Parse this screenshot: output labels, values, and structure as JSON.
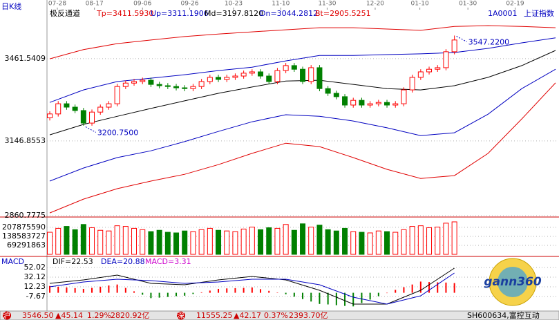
{
  "window_title": "日K线",
  "header": {
    "security_code": "1A0001",
    "security_name": "上证指数"
  },
  "chart_data": [
    {
      "type": "candlestick",
      "title": "极反通道",
      "up_color": "#ff0000",
      "down_color": "#008000",
      "xlim": [
        -0.33,
        60.16
      ],
      "xticks": [
        {
          "value": 0.9,
          "label": "07-28"
        },
        {
          "value": 5.3,
          "label": "08-17"
        },
        {
          "value": 11,
          "label": "09-06"
        },
        {
          "value": 16.6,
          "label": "09-26"
        },
        {
          "value": 21.8,
          "label": "10-23"
        },
        {
          "value": 27.4,
          "label": "11-10"
        },
        {
          "value": 32.9,
          "label": "11-30"
        },
        {
          "value": 38.6,
          "label": "12-20"
        },
        {
          "value": 43.9,
          "label": "01-10"
        },
        {
          "value": 49.6,
          "label": "01-30"
        },
        {
          "value": 55.2,
          "label": "02-19"
        }
      ],
      "ylim": [
        2860.7775,
        3649
      ],
      "yticks": [
        2860.7775,
        3146.8553,
        3461.5409
      ],
      "grid": true,
      "open": [
        3235,
        3250,
        3289,
        3276,
        3263,
        3215,
        3257,
        3276,
        3289,
        3355,
        3368,
        3374,
        3379,
        3363,
        3358,
        3355,
        3350,
        3347,
        3355,
        3374,
        3390,
        3382,
        3390,
        3395,
        3406,
        3411,
        3395,
        3374,
        3416,
        3435,
        3421,
        3374,
        3427,
        3347,
        3329,
        3316,
        3284,
        3302,
        3284,
        3289,
        3294,
        3284,
        3289,
        3342,
        3390,
        3411,
        3421,
        3427,
        3488
      ],
      "high": [
        3260,
        3299,
        3299,
        3286,
        3273,
        3267,
        3286,
        3299,
        3365,
        3378,
        3384,
        3389,
        3389,
        3373,
        3368,
        3365,
        3360,
        3365,
        3384,
        3400,
        3400,
        3400,
        3405,
        3416,
        3421,
        3421,
        3405,
        3426,
        3445,
        3445,
        3431,
        3437,
        3437,
        3357,
        3339,
        3326,
        3312,
        3312,
        3299,
        3304,
        3304,
        3299,
        3352,
        3400,
        3421,
        3431,
        3437,
        3498,
        3550
      ],
      "low": [
        3225,
        3240,
        3266,
        3253,
        3205,
        3205,
        3247,
        3266,
        3279,
        3345,
        3358,
        3364,
        3353,
        3348,
        3345,
        3340,
        3337,
        3337,
        3345,
        3364,
        3372,
        3372,
        3380,
        3385,
        3396,
        3385,
        3364,
        3364,
        3406,
        3411,
        3364,
        3364,
        3337,
        3319,
        3306,
        3274,
        3274,
        3274,
        3274,
        3279,
        3274,
        3274,
        3279,
        3332,
        3380,
        3401,
        3411,
        3417,
        3478
      ],
      "close": [
        3250,
        3289,
        3276,
        3263,
        3215,
        3257,
        3276,
        3289,
        3355,
        3368,
        3374,
        3379,
        3363,
        3358,
        3355,
        3350,
        3347,
        3355,
        3374,
        3390,
        3382,
        3390,
        3395,
        3406,
        3411,
        3395,
        3374,
        3416,
        3435,
        3421,
        3374,
        3427,
        3347,
        3329,
        3316,
        3284,
        3302,
        3284,
        3289,
        3294,
        3284,
        3289,
        3342,
        3390,
        3411,
        3421,
        3427,
        3488,
        3533
      ],
      "series": [
        {
          "name": "Tp=3411.5930",
          "color": "#e00000",
          "x": [
            0,
            4,
            8,
            12,
            16,
            20,
            24,
            28,
            32,
            36,
            40,
            44,
            48,
            52,
            56,
            60
          ],
          "values": [
            3461,
            3496,
            3519,
            3533,
            3546,
            3556,
            3564,
            3572,
            3580,
            3580,
            3575,
            3570,
            3585,
            3588,
            3585,
            3580
          ]
        },
        {
          "name": "Up=3311.1906",
          "color": "#0000c0",
          "x": [
            0,
            4,
            8,
            12,
            16,
            20,
            24,
            28,
            32,
            36,
            40,
            44,
            48,
            52,
            56,
            60
          ],
          "values": [
            3294,
            3342,
            3374,
            3387,
            3400,
            3416,
            3429,
            3453,
            3474,
            3474,
            3477,
            3480,
            3485,
            3501,
            3522,
            3541
          ]
        },
        {
          "name": "Md=3197.8120",
          "color": "#000000",
          "x": [
            0,
            4,
            8,
            12,
            16,
            20,
            24,
            28,
            32,
            36,
            40,
            44,
            48,
            52,
            56,
            60
          ],
          "values": [
            3170,
            3210,
            3241,
            3271,
            3300,
            3329,
            3353,
            3376,
            3379,
            3363,
            3347,
            3342,
            3358,
            3390,
            3435,
            3493
          ]
        },
        {
          "name": "Dn=3044.2812",
          "color": "#0000c0",
          "x": [
            0,
            4,
            8,
            12,
            16,
            20,
            24,
            28,
            32,
            36,
            40,
            44,
            48,
            52,
            56,
            60
          ],
          "values": [
            2993,
            3043,
            3083,
            3109,
            3144,
            3183,
            3220,
            3247,
            3241,
            3223,
            3197,
            3167,
            3178,
            3249,
            3347,
            3421
          ]
        },
        {
          "name": "Bt=2905.5251",
          "color": "#e00000",
          "x": [
            0,
            4,
            8,
            12,
            16,
            20,
            24,
            28,
            32,
            36,
            40,
            44,
            48,
            52,
            56,
            60
          ],
          "values": [
            2871,
            2924,
            2964,
            2993,
            3019,
            3056,
            3099,
            3138,
            3125,
            3083,
            3038,
            3003,
            3014,
            3099,
            3231,
            3369
          ]
        }
      ],
      "annotations": [
        {
          "label": "3547.2200",
          "value": 3547.22,
          "x": 48
        },
        {
          "label": "3200.7500",
          "value": 3200.75,
          "x": 4
        }
      ]
    },
    {
      "type": "bar",
      "ylim": [
        0,
        266000000
      ],
      "yticks": [
        69291863,
        138583727,
        207875590
      ],
      "values": [
        170000000,
        200000000,
        215000000,
        190000000,
        230000000,
        205000000,
        185000000,
        180000000,
        220000000,
        215000000,
        200000000,
        190000000,
        175000000,
        185000000,
        170000000,
        165000000,
        180000000,
        175000000,
        190000000,
        200000000,
        185000000,
        180000000,
        175000000,
        195000000,
        210000000,
        190000000,
        205000000,
        200000000,
        230000000,
        185000000,
        235000000,
        210000000,
        225000000,
        190000000,
        180000000,
        200000000,
        175000000,
        170000000,
        165000000,
        180000000,
        175000000,
        170000000,
        190000000,
        215000000,
        220000000,
        205000000,
        210000000,
        240000000,
        250000000
      ]
    },
    {
      "type": "macd",
      "title": "MACD",
      "ylim": [
        -37.5,
        57.7
      ],
      "yticks": [
        -7.67,
        12.23,
        32.12,
        52.02
      ],
      "series": [
        {
          "name": "DIF=22.53",
          "color": "#000000",
          "x": [
            0,
            4,
            8,
            12,
            16,
            20,
            24,
            28,
            32,
            36,
            40,
            44,
            48
          ],
          "values": [
            19.3,
            26.4,
            36.4,
            19.3,
            16.5,
            26.4,
            33.5,
            26.4,
            5.1,
            -23.3,
            -23.3,
            5.1,
            50.6
          ]
        },
        {
          "name": "DEA=20.88",
          "color": "#0000c0",
          "x": [
            0,
            4,
            8,
            12,
            16,
            20,
            24,
            28,
            32,
            36,
            40,
            44,
            48
          ],
          "values": [
            12.2,
            22.2,
            27.9,
            25.0,
            19.3,
            22.2,
            27.9,
            27.9,
            16.5,
            -9.1,
            -23.3,
            -6.2,
            40.6
          ]
        },
        {
          "name": "MACD=3.31",
          "color": "#cc00cc",
          "values": [
            14,
            12.5,
            11,
            9.5,
            8,
            10,
            12.5,
            15,
            17,
            10,
            3,
            -4,
            -11,
            -10,
            -8.5,
            -7,
            -6,
            -2.5,
            1,
            4.5,
            8,
            9,
            9.5,
            10,
            11,
            7.5,
            4,
            0.5,
            -3,
            -8,
            -13,
            -18,
            -23,
            -24,
            -25.5,
            -27,
            -28,
            -21,
            -14,
            -7,
            0,
            6,
            11.5,
            17,
            23,
            22,
            21.5,
            21,
            20
          ]
        }
      ]
    }
  ],
  "status_bar": [
    "沪",
    "3546.50",
    "▲45.14",
    "1.29%",
    "2820.92亿",
    "深",
    "11555.25",
    "▲42.17",
    "0.37%",
    "2393.70亿",
    "SH600634,富控互动"
  ],
  "logo": "gann360"
}
